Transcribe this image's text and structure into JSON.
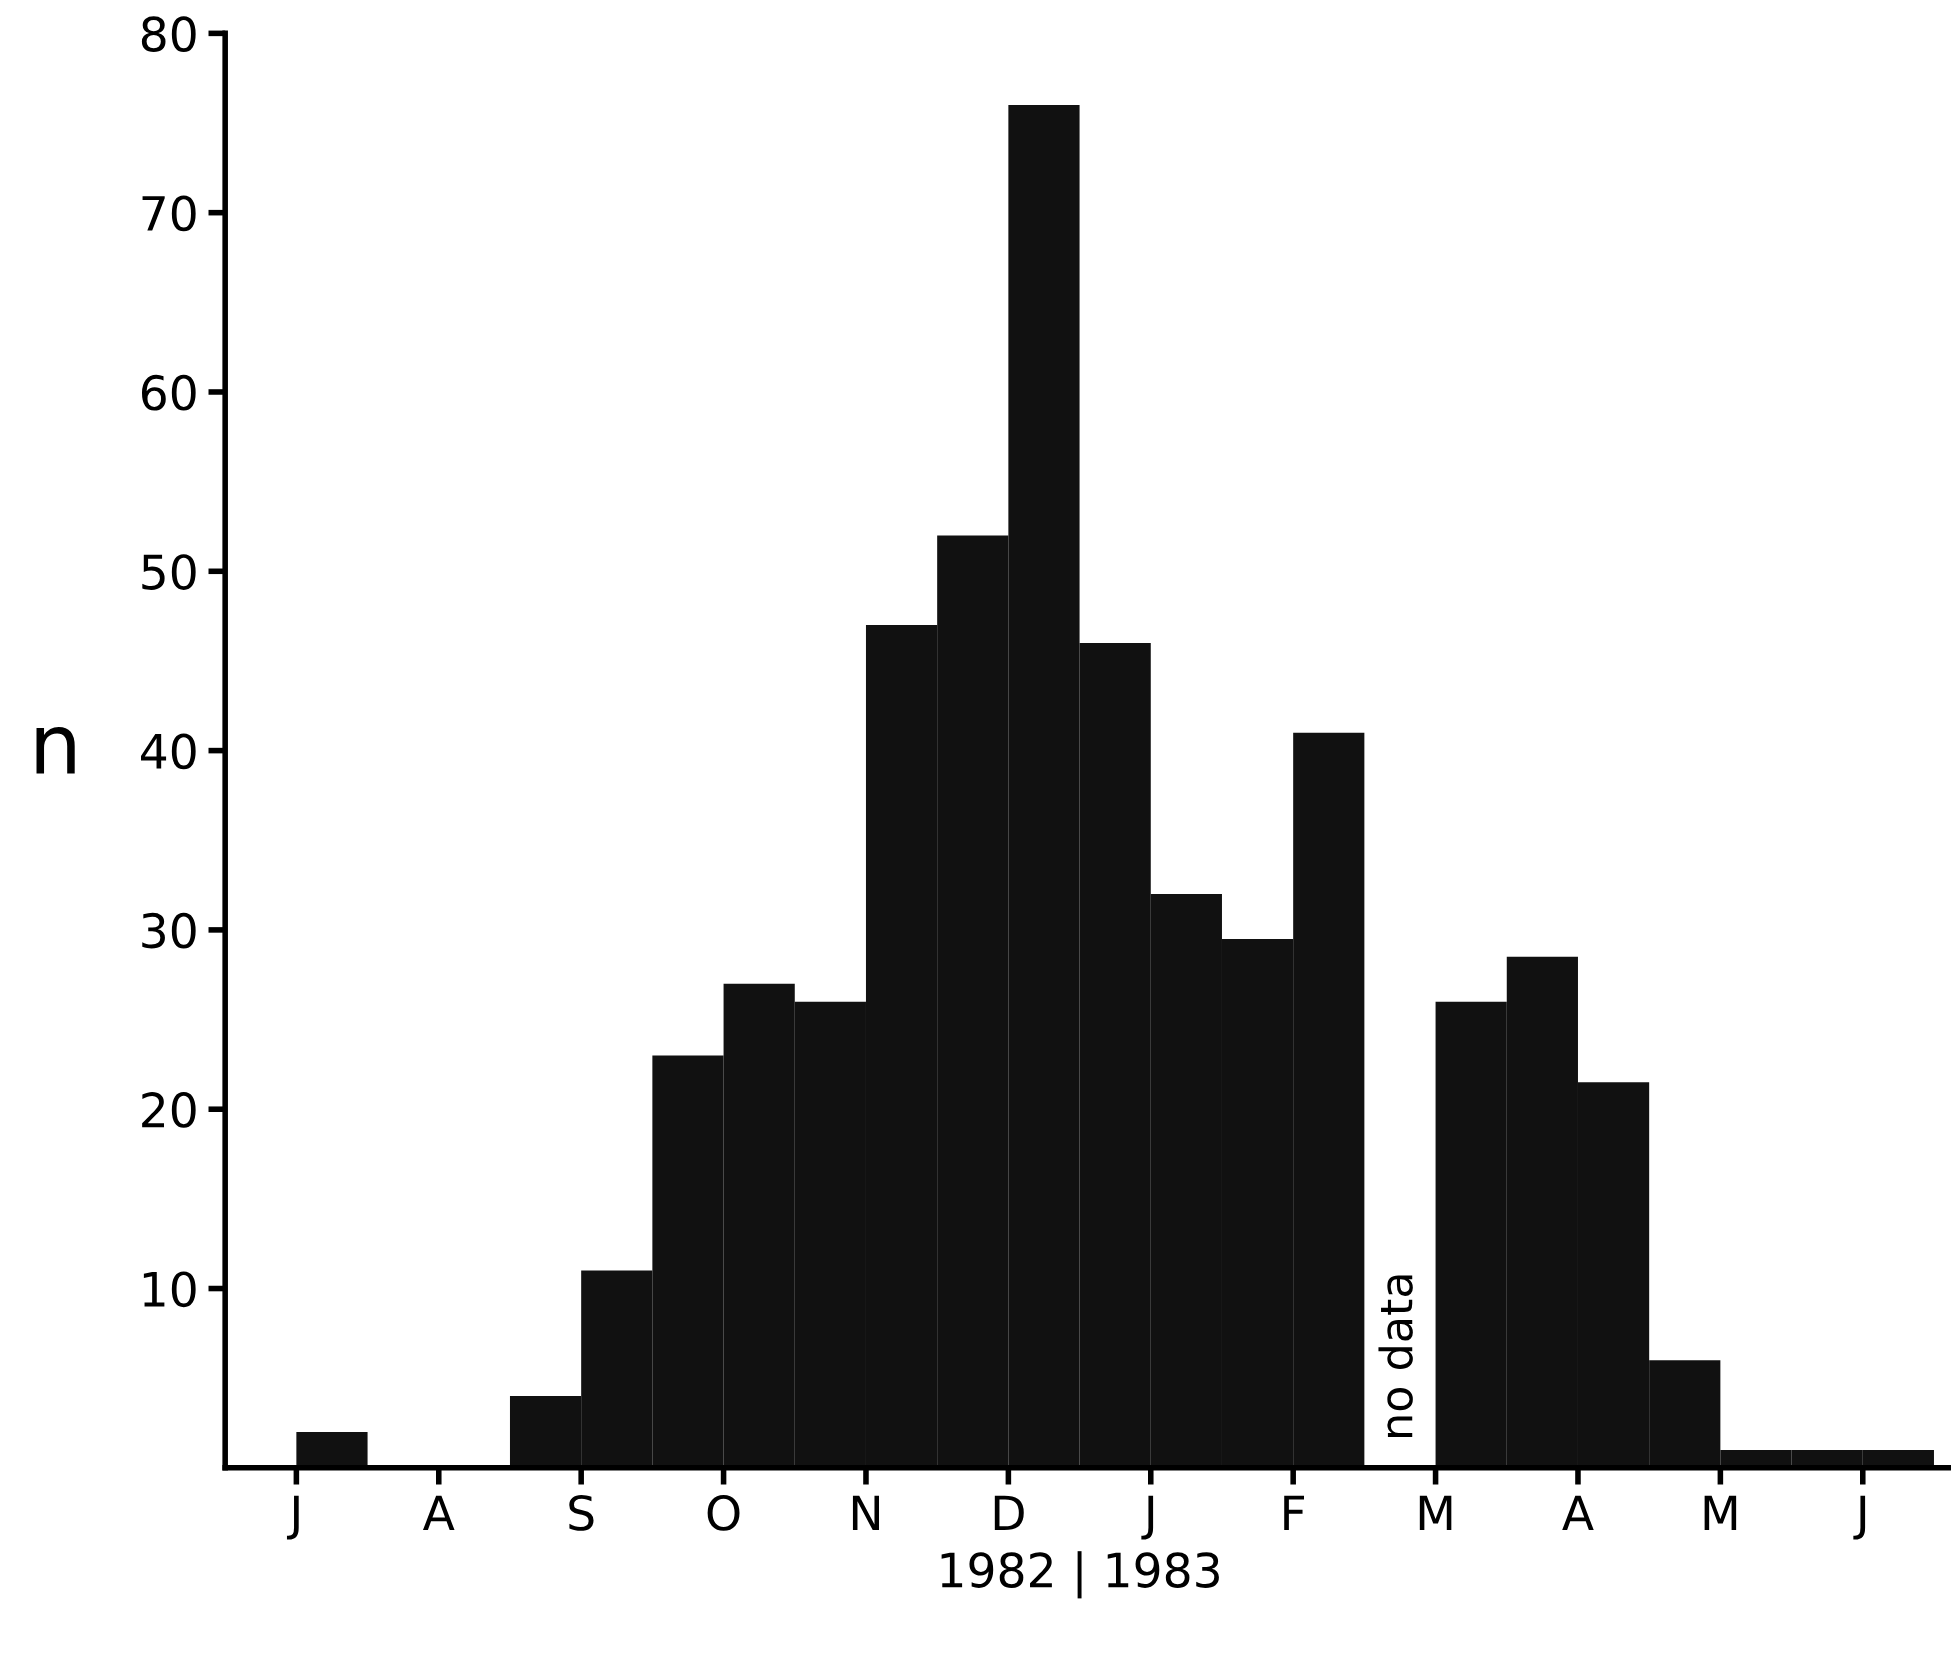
{
  "chart_data": {
    "type": "bar",
    "ylabel": "n",
    "categories": [
      null,
      "J",
      null,
      "A",
      null,
      "S",
      null,
      "O",
      null,
      "N",
      null,
      "D",
      null,
      "J",
      null,
      "F",
      null,
      "M",
      null,
      "A",
      null,
      "M",
      null,
      "J"
    ],
    "values": [
      0,
      2,
      0,
      0,
      4,
      11,
      23,
      27,
      26,
      47,
      52,
      76,
      46,
      32,
      29.5,
      41,
      null,
      26,
      28.5,
      21.5,
      6,
      1,
      1,
      1
    ],
    "color": "#111111",
    "ylim": [
      0,
      80
    ],
    "yticks": [
      10,
      20,
      30,
      40,
      50,
      60,
      70,
      80
    ],
    "grid": false,
    "annotations": [
      "no data",
      "1982 | 1983"
    ]
  }
}
